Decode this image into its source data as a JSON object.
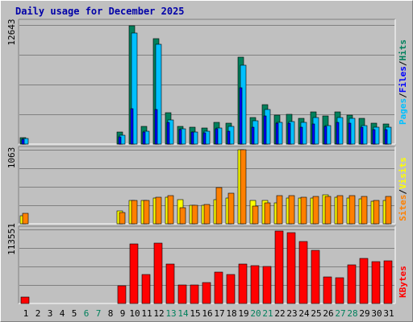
{
  "title": "Daily usage for December 2025",
  "colors": {
    "background": "#c0c0c0",
    "plot_background": "#c0c0c0",
    "hits": "#00805c",
    "files": "#0000ff",
    "pages": "#00c0ff",
    "visits": "#ffff00",
    "sites": "#ff8000",
    "kbytes": "#ff0000",
    "weekend_day_label": "#00805c",
    "title": "#0000a8"
  },
  "legends": {
    "top": {
      "pages": "Pages",
      "files": "Files",
      "hits": "Hits",
      "sep": "/"
    },
    "middle": {
      "sites": "Sites",
      "visits": "Visits",
      "sep": "/"
    },
    "bottom": {
      "kbytes": "KBytes"
    }
  },
  "chart_data": [
    {
      "type": "bar",
      "panel": "hits-files-pages",
      "categories": [
        "1",
        "2",
        "3",
        "4",
        "5",
        "6",
        "7",
        "8",
        "9",
        "10",
        "11",
        "12",
        "13",
        "14",
        "15",
        "16",
        "17",
        "18",
        "19",
        "20",
        "21",
        "22",
        "23",
        "24",
        "25",
        "26",
        "27",
        "28",
        "29",
        "30",
        "31"
      ],
      "max_label": "12643",
      "ylim": [
        0,
        12643
      ],
      "series": [
        {
          "name": "Hits",
          "values": [
            700,
            0,
            0,
            0,
            0,
            0,
            0,
            0,
            1300,
            12600,
            1900,
            11200,
            3300,
            1900,
            1800,
            1700,
            2300,
            2200,
            9200,
            2800,
            4200,
            3100,
            3200,
            2700,
            3400,
            3000,
            3400,
            3100,
            2700,
            2200,
            2100
          ]
        },
        {
          "name": "Files",
          "values": [
            500,
            0,
            0,
            0,
            0,
            0,
            0,
            0,
            800,
            3800,
            1300,
            3700,
            2300,
            1500,
            1300,
            1200,
            1600,
            1400,
            6000,
            1800,
            3000,
            2200,
            2200,
            1800,
            2100,
            1900,
            2300,
            2200,
            1800,
            1500,
            1500
          ]
        },
        {
          "name": "Pages",
          "values": [
            600,
            0,
            0,
            0,
            0,
            0,
            0,
            0,
            900,
            11800,
            1400,
            10600,
            2600,
            1600,
            1300,
            1400,
            1700,
            1900,
            8400,
            2500,
            3700,
            2300,
            2400,
            2300,
            2800,
            2000,
            2800,
            2700,
            2000,
            1800,
            1800
          ]
        }
      ]
    },
    {
      "type": "bar",
      "panel": "sites-visits",
      "categories": [
        "1",
        "2",
        "3",
        "4",
        "5",
        "6",
        "7",
        "8",
        "9",
        "10",
        "11",
        "12",
        "13",
        "14",
        "15",
        "16",
        "17",
        "18",
        "19",
        "20",
        "21",
        "22",
        "23",
        "24",
        "25",
        "26",
        "27",
        "28",
        "29",
        "30",
        "31"
      ],
      "max_label": "1063",
      "ylim": [
        0,
        1063
      ],
      "series": [
        {
          "name": "Visits",
          "values": [
            110,
            0,
            0,
            0,
            0,
            0,
            0,
            0,
            190,
            330,
            330,
            370,
            380,
            350,
            260,
            260,
            350,
            370,
            1063,
            340,
            340,
            300,
            370,
            370,
            370,
            420,
            380,
            370,
            360,
            320,
            330
          ]
        },
        {
          "name": "Sites",
          "values": [
            150,
            0,
            0,
            0,
            0,
            0,
            0,
            0,
            160,
            340,
            340,
            380,
            410,
            230,
            260,
            280,
            520,
            440,
            1063,
            250,
            300,
            400,
            410,
            380,
            390,
            390,
            400,
            400,
            390,
            340,
            390
          ]
        }
      ]
    },
    {
      "type": "bar",
      "panel": "kbytes",
      "categories": [
        "1",
        "2",
        "3",
        "4",
        "5",
        "6",
        "7",
        "8",
        "9",
        "10",
        "11",
        "12",
        "13",
        "14",
        "15",
        "16",
        "17",
        "18",
        "19",
        "20",
        "21",
        "22",
        "23",
        "24",
        "25",
        "26",
        "27",
        "28",
        "29",
        "30",
        "31"
      ],
      "max_label": "113551",
      "ylim": [
        0,
        113551
      ],
      "series": [
        {
          "name": "KBytes",
          "values": [
            10000,
            0,
            0,
            0,
            0,
            0,
            0,
            0,
            27000,
            91000,
            44000,
            92000,
            61000,
            29000,
            28000,
            32000,
            48000,
            45000,
            60000,
            58000,
            57000,
            111000,
            109000,
            95000,
            81000,
            41000,
            39000,
            59000,
            69000,
            64000,
            65000
          ]
        }
      ]
    }
  ],
  "day_labels": [
    "1",
    "2",
    "3",
    "4",
    "5",
    "6",
    "7",
    "8",
    "9",
    "10",
    "11",
    "12",
    "13",
    "14",
    "15",
    "16",
    "17",
    "18",
    "19",
    "20",
    "21",
    "22",
    "23",
    "24",
    "25",
    "26",
    "27",
    "28",
    "29",
    "30",
    "31"
  ],
  "weekend_days": [
    "6",
    "7",
    "13",
    "14",
    "20",
    "21",
    "27",
    "28"
  ]
}
